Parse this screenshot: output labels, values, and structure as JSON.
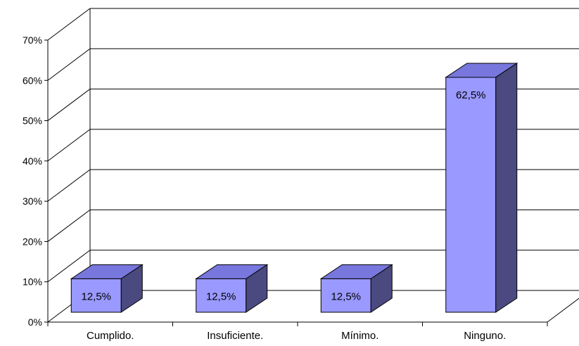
{
  "chart_data": {
    "type": "bar",
    "title": "",
    "xlabel": "",
    "ylabel": "",
    "categories": [
      "Cumplido.",
      "Insuficiente.",
      "Mínimo.",
      "Ninguno."
    ],
    "values": [
      12.5,
      12.5,
      12.5,
      62.5
    ],
    "data_labels": [
      "12,5%",
      "12,5%",
      "12,5%",
      "62,5%"
    ],
    "ylim": [
      0,
      70
    ],
    "yticks": [
      0,
      10,
      20,
      30,
      40,
      50,
      60,
      70
    ],
    "ytick_labels": [
      "0%",
      "10%",
      "20%",
      "30%",
      "40%",
      "50%",
      "60%",
      "70%"
    ],
    "grid": true,
    "legend": "none",
    "three_d": true,
    "colors": {
      "bar_front": "#9999ff",
      "bar_top": "#7777dd",
      "bar_side": "#4a4a80",
      "grid": "#000000",
      "background": "#ffffff"
    }
  }
}
